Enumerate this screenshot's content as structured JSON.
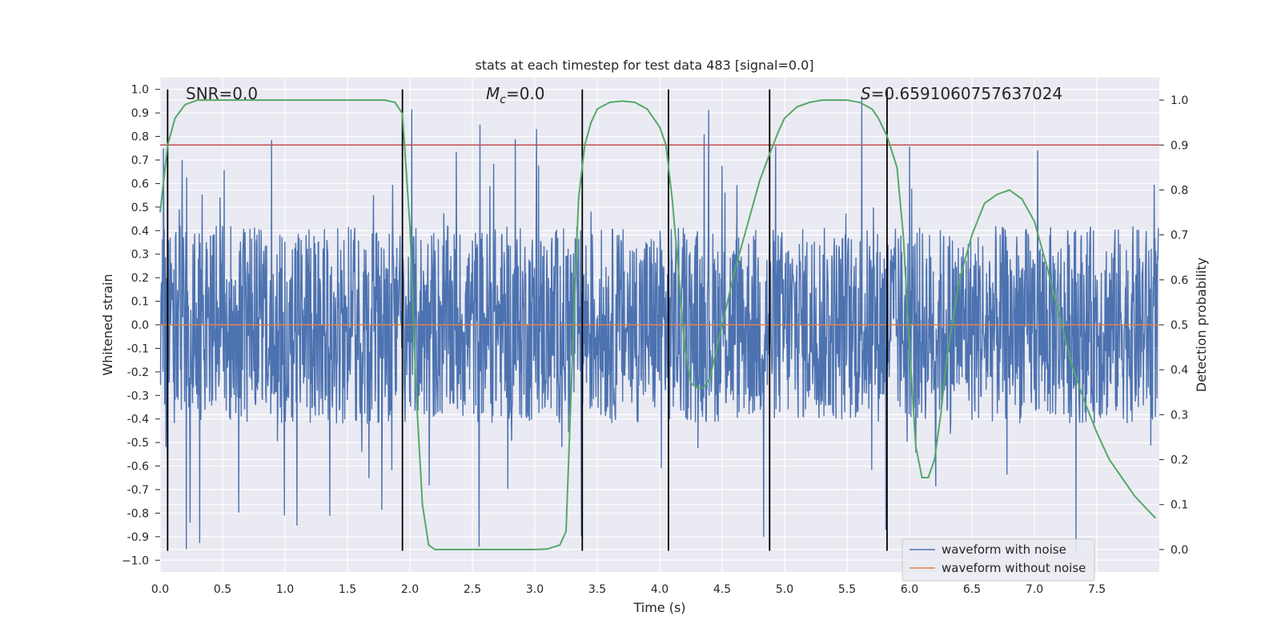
{
  "chart_data": {
    "type": "line",
    "title": "stats at each timestep for test data 483 [signal=0.0]",
    "xlabel": "Time (s)",
    "ylabel_left": "Whitened strain",
    "ylabel_right": "Detection probability",
    "xlim": [
      0.0,
      8.0
    ],
    "ylim_left": [
      -1.05,
      1.05
    ],
    "ylim_right": [
      -0.05,
      1.05
    ],
    "x_ticks": [
      0.0,
      0.5,
      1.0,
      1.5,
      2.0,
      2.5,
      3.0,
      3.5,
      4.0,
      4.5,
      5.0,
      5.5,
      6.0,
      6.5,
      7.0,
      7.5
    ],
    "x_tick_labels": [
      "0.0",
      "0.5",
      "1.0",
      "1.5",
      "2.0",
      "2.5",
      "3.0",
      "3.5",
      "4.0",
      "4.5",
      "5.0",
      "5.5",
      "6.0",
      "6.5",
      "7.0",
      "7.5"
    ],
    "y_ticks_left": [
      1.0,
      0.9,
      0.8,
      0.7,
      0.6,
      0.5,
      0.4,
      0.3,
      0.2,
      0.1,
      0.0,
      -0.1,
      -0.2,
      -0.3,
      -0.4,
      -0.5,
      -0.6,
      -0.7,
      -0.8,
      -0.9,
      -1.0
    ],
    "y_tick_labels_left": [
      "1.0",
      "0.9",
      "0.8",
      "0.7",
      "0.6",
      "0.5",
      "0.4",
      "0.3",
      "0.2",
      "0.1",
      "0.0",
      "-0.1",
      "-0.2",
      "-0.3",
      "-0.4",
      "-0.5",
      "-0.6",
      "-0.7",
      "-0.8",
      "-0.9",
      "−1.0"
    ],
    "y_ticks_right": [
      1.0,
      0.9,
      0.8,
      0.7,
      0.6,
      0.5,
      0.4,
      0.3,
      0.2,
      0.1,
      0.0
    ],
    "y_tick_labels_right": [
      "1.0",
      "0.9",
      "0.8",
      "0.7",
      "0.6",
      "0.5",
      "0.4",
      "0.3",
      "0.2",
      "0.1",
      "0.0"
    ],
    "grid": true,
    "legend_placement": "lower-right",
    "annotations": {
      "snr": "SNR=0.0",
      "mc_symbol": "M",
      "mc_sub": "c",
      "mc_value": "=0.0",
      "s_symbol": "S",
      "s_value": "=0.6591060757637024"
    },
    "series": [
      {
        "name": "waveform with noise",
        "color": "#4c72b0",
        "kind": "noise",
        "amplitude_quantiles": {
          "typical": 0.42,
          "peak_max": 0.98,
          "peak_min": -0.96
        }
      },
      {
        "name": "waveform without noise",
        "color": "#dd8452",
        "kind": "flat",
        "value": 0.0
      }
    ],
    "threshold_line": {
      "value": 0.9,
      "axis": "right",
      "color": "#c44e52"
    },
    "event_markers_x": [
      0.06,
      1.94,
      3.38,
      4.07,
      4.88,
      5.82
    ],
    "event_marker_range": [
      -0.96,
      1.0
    ],
    "detection_probability": {
      "color": "#55a868",
      "x": [
        0.0,
        0.06,
        0.12,
        0.2,
        0.3,
        0.5,
        1.0,
        1.5,
        1.8,
        1.88,
        1.94,
        2.0,
        2.05,
        2.1,
        2.15,
        2.2,
        2.5,
        3.0,
        3.1,
        3.2,
        3.25,
        3.3,
        3.35,
        3.4,
        3.45,
        3.5,
        3.6,
        3.7,
        3.8,
        3.9,
        3.95,
        4.0,
        4.05,
        4.1,
        4.15,
        4.2,
        4.25,
        4.3,
        4.35,
        4.4,
        4.5,
        4.6,
        4.7,
        4.8,
        4.88,
        4.95,
        5.0,
        5.1,
        5.2,
        5.3,
        5.4,
        5.5,
        5.6,
        5.7,
        5.75,
        5.82,
        5.9,
        5.95,
        6.0,
        6.05,
        6.1,
        6.15,
        6.2,
        6.25,
        6.3,
        6.4,
        6.5,
        6.6,
        6.7,
        6.8,
        6.9,
        7.0,
        7.1,
        7.2,
        7.3,
        7.4,
        7.5,
        7.6,
        7.7,
        7.8,
        7.9,
        7.97
      ],
      "y": [
        0.75,
        0.9,
        0.96,
        0.99,
        1.0,
        1.0,
        1.0,
        1.0,
        1.0,
        0.995,
        0.97,
        0.72,
        0.35,
        0.1,
        0.01,
        0.0,
        0.0,
        0.0,
        0.001,
        0.01,
        0.04,
        0.42,
        0.78,
        0.9,
        0.95,
        0.98,
        0.995,
        0.998,
        0.995,
        0.98,
        0.96,
        0.94,
        0.9,
        0.78,
        0.62,
        0.45,
        0.37,
        0.36,
        0.36,
        0.38,
        0.5,
        0.62,
        0.72,
        0.82,
        0.88,
        0.93,
        0.96,
        0.985,
        0.995,
        1.0,
        1.0,
        1.0,
        0.995,
        0.98,
        0.96,
        0.92,
        0.85,
        0.7,
        0.45,
        0.23,
        0.16,
        0.16,
        0.2,
        0.3,
        0.43,
        0.6,
        0.7,
        0.77,
        0.79,
        0.8,
        0.78,
        0.73,
        0.63,
        0.52,
        0.41,
        0.33,
        0.26,
        0.2,
        0.16,
        0.12,
        0.09,
        0.07
      ]
    }
  }
}
